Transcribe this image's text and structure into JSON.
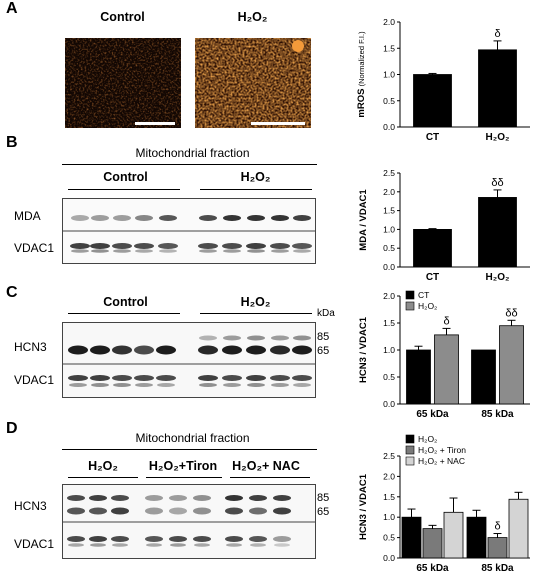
{
  "panels": {
    "A": {
      "letter": "A",
      "images": {
        "control_label": "Control",
        "h2o2_label": "H₂O₂"
      },
      "chart": {
        "ylabel": "mROS",
        "ylabel_sub": "(Normalized F.I.)",
        "yticks": [
          "0.0",
          "0.5",
          "1.0",
          "1.5",
          "2.0"
        ],
        "ylim": [
          0,
          2.0
        ],
        "categories": [
          "CT",
          "H₂O₂"
        ],
        "values": [
          1.0,
          1.47
        ],
        "errors": [
          0.02,
          0.17
        ],
        "sig": [
          "",
          "δ"
        ]
      }
    },
    "B": {
      "letter": "B",
      "fraction_label": "Mitochondrial fraction",
      "group_labels": [
        "Control",
        "H₂O₂"
      ],
      "row_labels": [
        "MDA",
        "VDAC1"
      ],
      "chart": {
        "ylabel": "MDA / VDAC1",
        "yticks": [
          "0.0",
          "0.5",
          "1.0",
          "1.5",
          "2.0",
          "2.5"
        ],
        "ylim": [
          0,
          2.5
        ],
        "categories": [
          "CT",
          "H₂O₂"
        ],
        "values": [
          1.0,
          1.85
        ],
        "errors": [
          0.02,
          0.2
        ],
        "sig": [
          "",
          "δδ"
        ]
      }
    },
    "C": {
      "letter": "C",
      "group_labels": [
        "Control",
        "H₂O₂"
      ],
      "kda_label": "kDa",
      "mw_markers": [
        "85",
        "65"
      ],
      "row_labels": [
        "HCN3",
        "VDAC1"
      ],
      "chart": {
        "ylabel": "HCN3 / VDAC1",
        "yticks": [
          "0.0",
          "0.5",
          "1.0",
          "1.5",
          "2.0"
        ],
        "ylim": [
          0,
          2.0
        ],
        "categories": [
          "65 kDa",
          "85 kDa"
        ],
        "legend": [
          "CT",
          "H₂O₂"
        ],
        "series": [
          {
            "name": "CT",
            "values": [
              1.0,
              1.0
            ],
            "errors": [
              0.07,
              0.0
            ]
          },
          {
            "name": "H₂O₂",
            "values": [
              1.28,
              1.45
            ],
            "errors": [
              0.12,
              0.1
            ]
          }
        ],
        "sig": [
          [
            "",
            ""
          ],
          [
            "δ",
            "δδ"
          ]
        ],
        "colors": [
          "#000000",
          "#8c8c8c"
        ]
      }
    },
    "D": {
      "letter": "D",
      "fraction_label": "Mitochondrial fraction",
      "group_labels": [
        "H₂O₂",
        "H₂O₂+Tiron",
        "H₂O₂+ NAC"
      ],
      "mw_markers": [
        "85",
        "65"
      ],
      "row_labels": [
        "HCN3",
        "VDAC1"
      ],
      "chart": {
        "ylabel": "HCN3 / VDAC1",
        "yticks": [
          "0.0",
          "0.5",
          "1.0",
          "1.5",
          "2.0",
          "2.5"
        ],
        "ylim": [
          0,
          2.5
        ],
        "categories": [
          "65 kDa",
          "85 kDa"
        ],
        "legend": [
          "H₂O₂",
          "H₂O₂ + Tiron",
          "H₂O₂ + NAC"
        ],
        "series": [
          {
            "name": "H₂O₂",
            "values": [
              1.0,
              1.0
            ],
            "errors": [
              0.2,
              0.17
            ]
          },
          {
            "name": "H₂O₂ + Tiron",
            "values": [
              0.72,
              0.5
            ],
            "errors": [
              0.08,
              0.1
            ]
          },
          {
            "name": "H₂O₂ + NAC",
            "values": [
              1.12,
              1.44
            ],
            "errors": [
              0.35,
              0.17
            ]
          }
        ],
        "sig": [
          [
            "",
            ""
          ],
          [
            "",
            "δ"
          ],
          [
            "",
            ""
          ]
        ],
        "colors": [
          "#000000",
          "#7a7a7a",
          "#d4d4d4"
        ]
      }
    }
  }
}
